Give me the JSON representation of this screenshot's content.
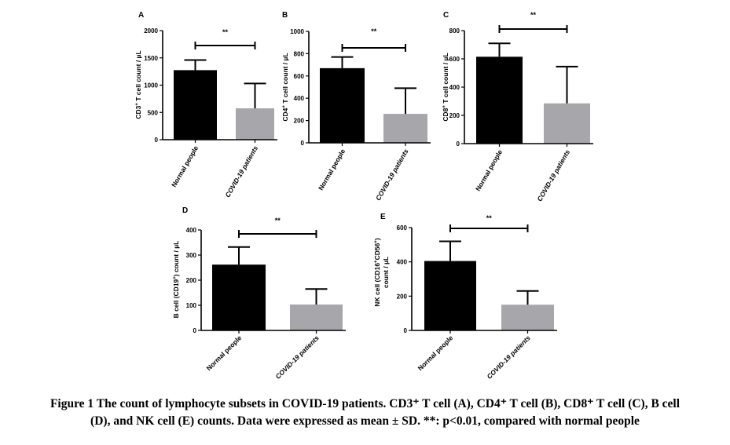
{
  "chart_data": [
    {
      "type": "bar",
      "panel": "A",
      "ylabel_parts": [
        "CD3",
        "+",
        " T cell count / µL"
      ],
      "categories": [
        "Normal people",
        "COVID-19 patients"
      ],
      "values": [
        1275,
        575
      ],
      "error": [
        185,
        455
      ],
      "ylim": [
        0,
        2000
      ],
      "yticks": [
        "0",
        "500",
        "1000",
        "1500",
        "2000"
      ],
      "yticks_values": [
        0,
        500,
        1000,
        1500,
        2000
      ],
      "significance": "**",
      "colors": [
        "#000000",
        "#a6a6ab"
      ],
      "grid": false
    },
    {
      "type": "bar",
      "panel": "B",
      "ylabel_parts": [
        "CD4",
        "+",
        " T cell count / µL"
      ],
      "categories": [
        "Normal people",
        "COVID-19 patients"
      ],
      "values": [
        670,
        260
      ],
      "error": [
        100,
        230
      ],
      "ylim": [
        0,
        1000
      ],
      "yticks": [
        "0",
        "200",
        "400",
        "600",
        "800",
        "1000"
      ],
      "yticks_values": [
        0,
        200,
        400,
        600,
        800,
        1000
      ],
      "significance": "**",
      "colors": [
        "#000000",
        "#a6a6ab"
      ],
      "grid": false
    },
    {
      "type": "bar",
      "panel": "C",
      "ylabel_parts": [
        "CD8",
        "+",
        " T cell count / µL"
      ],
      "categories": [
        "Normal people",
        "COVID-19 patients"
      ],
      "values": [
        615,
        285
      ],
      "error": [
        95,
        260
      ],
      "ylim": [
        0,
        800
      ],
      "yticks": [
        "0",
        "200",
        "400",
        "600",
        "800"
      ],
      "yticks_values": [
        0,
        200,
        400,
        600,
        800
      ],
      "significance": "**",
      "colors": [
        "#000000",
        "#a6a6ab"
      ],
      "grid": false
    },
    {
      "type": "bar",
      "panel": "D",
      "ylabel_parts": [
        "B cell (CD19",
        "+",
        ") count / µL"
      ],
      "categories": [
        "Normal people",
        "COVID-19 patients"
      ],
      "values": [
        262,
        103
      ],
      "error": [
        70,
        62
      ],
      "ylim": [
        0,
        400
      ],
      "yticks": [
        "0",
        "100",
        "200",
        "300",
        "400"
      ],
      "yticks_values": [
        0,
        100,
        200,
        300,
        400
      ],
      "significance": "**",
      "colors": [
        "#000000",
        "#a6a6ab"
      ],
      "grid": false
    },
    {
      "type": "bar",
      "panel": "E",
      "ylabel_parts": [
        "NK cell (CD16",
        "+",
        "CD56",
        "+",
        ")"
      ],
      "ylabel_line2": "count / µL",
      "categories": [
        "Normal people",
        "COVID-19 patients"
      ],
      "values": [
        405,
        150
      ],
      "error": [
        115,
        80
      ],
      "ylim": [
        0,
        600
      ],
      "yticks": [
        "0",
        "200",
        "400",
        "600"
      ],
      "yticks_values": [
        0,
        200,
        400,
        600
      ],
      "significance": "**",
      "colors": [
        "#000000",
        "#a6a6ab"
      ],
      "grid": false
    }
  ],
  "caption": {
    "line1": "Figure 1 The count of lymphocyte subsets in COVID-19 patients. CD3⁺ T cell (A), CD4⁺ T cell (B), CD8⁺ T cell (C), B cell",
    "line2": "(D), and NK cell (E) counts. Data were expressed as mean ± SD. **: p<0.01, compared with normal people"
  }
}
